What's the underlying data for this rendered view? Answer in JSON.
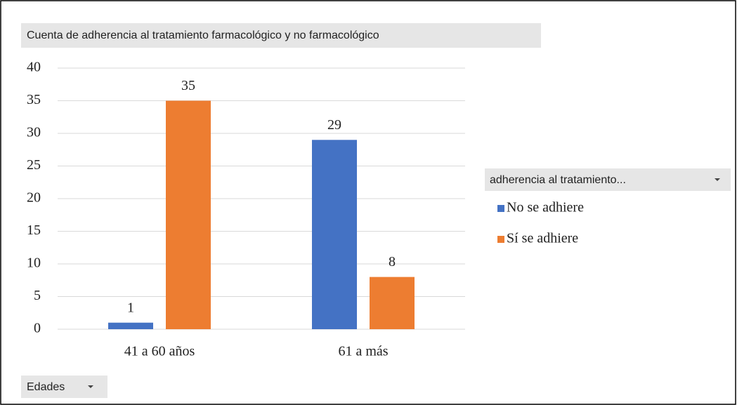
{
  "chart_data": {
    "type": "bar",
    "title": "Cuenta de adherencia al tratamiento farmacológico y no farmacológico",
    "categories": [
      "41 a 60 años",
      "61 a más"
    ],
    "series": [
      {
        "name": "No se adhiere",
        "color": "#4472c4",
        "values": [
          1,
          29
        ]
      },
      {
        "name": "Sí se adhiere",
        "color": "#ed7d31",
        "values": [
          35,
          8
        ]
      }
    ],
    "ylim": [
      0,
      40
    ],
    "yticks": [
      0,
      5,
      10,
      15,
      20,
      25,
      30,
      35,
      40
    ],
    "grid": true,
    "legend_title": "adherencia al tratamiento...",
    "legend": "right",
    "axis_field": "Edades"
  }
}
